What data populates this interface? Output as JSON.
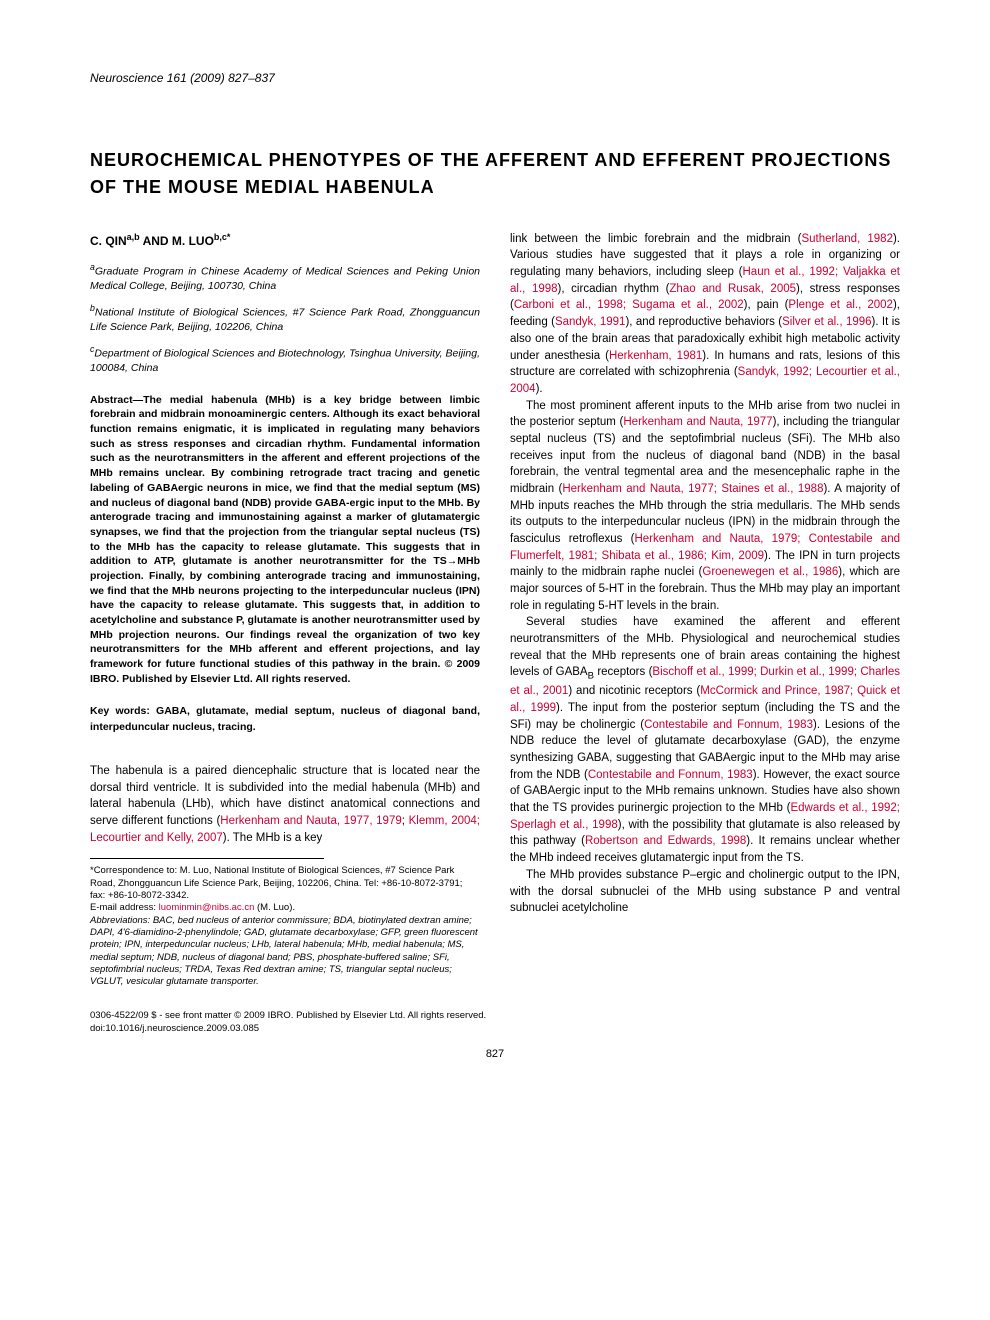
{
  "journal": {
    "name": "Neuroscience",
    "citation": "161 (2009) 827–837"
  },
  "title": "NEUROCHEMICAL PHENOTYPES OF THE AFFERENT AND EFFERENT PROJECTIONS OF THE MOUSE MEDIAL HABENULA",
  "authors": "C. QIN",
  "authors_sup1": "a,b",
  "authors_and": " AND M. LUO",
  "authors_sup2": "b,c*",
  "affiliations": {
    "a": "Graduate Program in Chinese Academy of Medical Sciences and Peking Union Medical College, Beijing, 100730, China",
    "b": "National Institute of Biological Sciences, #7 Science Park Road, Zhongguancun Life Science Park, Beijing, 102206, China",
    "c": "Department of Biological Sciences and Biotechnology, Tsinghua University, Beijing, 100084, China"
  },
  "abstract": "Abstract—The medial habenula (MHb) is a key bridge between limbic forebrain and midbrain monoaminergic centers. Although its exact behavioral function remains enigmatic, it is implicated in regulating many behaviors such as stress responses and circadian rhythm. Fundamental information such as the neurotransmitters in the afferent and efferent projections of the MHb remains unclear. By combining retrograde tract tracing and genetic labeling of GABAergic neurons in mice, we find that the medial septum (MS) and nucleus of diagonal band (NDB) provide GABA-ergic input to the MHb. By anterograde tracing and immunostaining against a marker of glutamatergic synapses, we find that the projection from the triangular septal nucleus (TS) to the MHb has the capacity to release glutamate. This suggests that in addition to ATP, glutamate is another neurotransmitter for the TS→MHb projection. Finally, by combining anterograde tracing and immunostaining, we find that the MHb neurons projecting to the interpeduncular nucleus (IPN) have the capacity to release glutamate. This suggests that, in addition to acetylcholine and substance P, glutamate is another neurotransmitter used by MHb projection neurons. Our findings reveal the organization of two key neurotransmitters for the MHb afferent and efferent projections, and lay framework for future functional studies of this pathway in the brain. © 2009 IBRO. Published by Elsevier Ltd. All rights reserved.",
  "keywords": "Key words: GABA, glutamate, medial septum, nucleus of diagonal band, interpeduncular nucleus, tracing.",
  "body": {
    "p1_a": "The habenula is a paired diencephalic structure that is located near the dorsal third ventricle. It is subdivided into the medial habenula (MHb) and lateral habenula (LHb), which have distinct anatomical connections and serve different functions (",
    "p1_c1": "Herkenham and Nauta, 1977, 1979",
    "p1_b": "; ",
    "p1_c2": "Klemm, 2004; Lecourtier and Kelly, 2007",
    "p1_c": "). The MHb is a key",
    "p2_a": "link between the limbic forebrain and the midbrain (",
    "p2_c1": "Sutherland, 1982",
    "p2_b": "). Various studies have suggested that it plays a role in organizing or regulating many behaviors, including sleep (",
    "p2_c2": "Haun et al., 1992; Valjakka et al., 1998",
    "p2_c": "), circadian rhythm (",
    "p2_c3": "Zhao and Rusak, 2005",
    "p2_d": "), stress responses (",
    "p2_c4": "Carboni et al., 1998; Sugama et al., 2002",
    "p2_e": "), pain (",
    "p2_c5": "Plenge et al., 2002",
    "p2_f": "), feeding (",
    "p2_c6": "Sandyk, 1991",
    "p2_g": "), and reproductive behaviors (",
    "p2_c7": "Silver et al., 1996",
    "p2_h": "). It is also one of the brain areas that paradoxically exhibit high metabolic activity under anesthesia (",
    "p2_c8": "Herkenham, 1981",
    "p2_i": "). In humans and rats, lesions of this structure are correlated with schizophrenia (",
    "p2_c9": "Sandyk, 1992; Lecourtier et al., 2004",
    "p2_j": ").",
    "p3_a": "The most prominent afferent inputs to the MHb arise from two nuclei in the posterior septum (",
    "p3_c1": "Herkenham and Nauta, 1977",
    "p3_b": "), including the triangular septal nucleus (TS) and the septofimbrial nucleus (SFi). The MHb also receives input from the nucleus of diagonal band (NDB) in the basal forebrain, the ventral tegmental area and the mesencephalic raphe in the midbrain (",
    "p3_c2": "Herkenham and Nauta, 1977; Staines et al., 1988",
    "p3_c": "). A majority of MHb inputs reaches the MHb through the stria medullaris. The MHb sends its outputs to the interpeduncular nucleus (IPN) in the midbrain through the fasciculus retroflexus (",
    "p3_c3": "Herkenham and Nauta, 1979; Contestabile and Flumerfelt, 1981; Shibata et al., 1986; Kim, 2009",
    "p3_d": "). The IPN in turn projects mainly to the midbrain raphe nuclei (",
    "p3_c4": "Groenewegen et al., 1986",
    "p3_e": "), which are major sources of 5-HT in the forebrain. Thus the MHb may play an important role in regulating 5-HT levels in the brain.",
    "p4_a": "Several studies have examined the afferent and efferent neurotransmitters of the MHb. Physiological and neurochemical studies reveal that the MHb represents one of brain areas containing the highest levels of GABA",
    "p4_sub": "B",
    "p4_b": " receptors (",
    "p4_c1": "Bischoff et al., 1999; Durkin et al., 1999; Charles et al., 2001",
    "p4_c": ") and nicotinic receptors (",
    "p4_c2": "McCormick and Prince, 1987; Quick et al., 1999",
    "p4_d": "). The input from the posterior septum (including the TS and the SFi) may be cholinergic (",
    "p4_c3": "Contestabile and Fonnum, 1983",
    "p4_e": "). Lesions of the NDB reduce the level of glutamate decarboxylase (GAD), the enzyme synthesizing GABA, suggesting that GABAergic input to the MHb may arise from the NDB (",
    "p4_c4": "Contestabile and Fonnum, 1983",
    "p4_f": "). However, the exact source of GABAergic input to the MHb remains unknown. Studies have also shown that the TS provides purinergic projection to the MHb (",
    "p4_c5": "Edwards et al., 1992; Sperlagh et al., 1998",
    "p4_g": "), with the possibility that glutamate is also released by this pathway (",
    "p4_c6": "Robertson and Edwards, 1998",
    "p4_h": "). It remains unclear whether the MHb indeed receives glutamatergic input from the TS.",
    "p5_a": "The MHb provides substance P–ergic and cholinergic output to the IPN, with the dorsal subnuclei of the MHb using substance P and ventral subnuclei acetylcholine"
  },
  "footnotes": {
    "corr": "*Correspondence to: M. Luo, National Institute of Biological Sciences, #7 Science Park Road, Zhongguancun Life Science Park, Beijing, 102206, China. Tel: +86-10-8072-3791; fax: +86-10-8072-3342.",
    "email_label": "E-mail address: ",
    "email": "luominmin@nibs.ac.cn",
    "email_name": " (M. Luo).",
    "abbrev": "Abbreviations: BAC, bed nucleus of anterior commissure; BDA, biotinylated dextran amine; DAPI, 4'6-diamidino-2-phenylindole; GAD, glutamate decarboxylase; GFP, green fluorescent protein; IPN, interpeduncular nucleus; LHb, lateral habenula; MHb, medial habenula; MS, medial septum; NDB, nucleus of diagonal band; PBS, phosphate-buffered saline; SFi, septofimbrial nucleus; TRDA, Texas Red dextran amine; TS, triangular septal nucleus; VGLUT, vesicular glutamate transporter."
  },
  "bottom": {
    "copyright": "0306-4522/09 $ - see front matter © 2009 IBRO. Published by Elsevier Ltd. All rights reserved.",
    "doi": "doi:10.1016/j.neuroscience.2009.03.085",
    "page": "827"
  },
  "colors": {
    "citation": "#cc0033",
    "text": "#000000",
    "background": "#ffffff"
  }
}
